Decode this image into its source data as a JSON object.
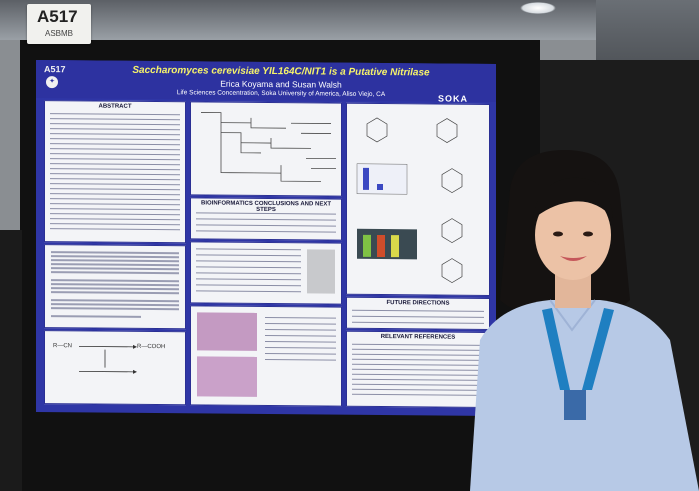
{
  "colors": {
    "poster_blue": "#2f36a6",
    "title_yellow": "#f6f36a",
    "panel_bg": "#f3f4f7",
    "lanyard": "#1f7fc1",
    "shirt": "#b7c9e6",
    "board": "#111111"
  },
  "booth": {
    "number": "A517",
    "org": "ASBMB"
  },
  "poster": {
    "number": "A517",
    "title": "Saccharomyces cerevisiae YIL164C/NIT1 is a Putative Nitrilase",
    "authors": "Erica Koyama and Susan Walsh",
    "affiliation": "Life Sciences Concentration, Soka University of America, Aliso Viejo, CA",
    "brand": "SOKA",
    "sections": {
      "abstract": "ABSTRACT",
      "conclusions": "BIOINFORMATICS CONCLUSIONS AND NEXT STEPS",
      "future": "FUTURE DIRECTIONS",
      "references": "RELEVANT REFERENCES"
    },
    "figure_labels": {
      "reaction_1": "R—CN",
      "reaction_2": "R—COOH"
    }
  },
  "icons": {
    "logo": "university-seal-icon"
  }
}
